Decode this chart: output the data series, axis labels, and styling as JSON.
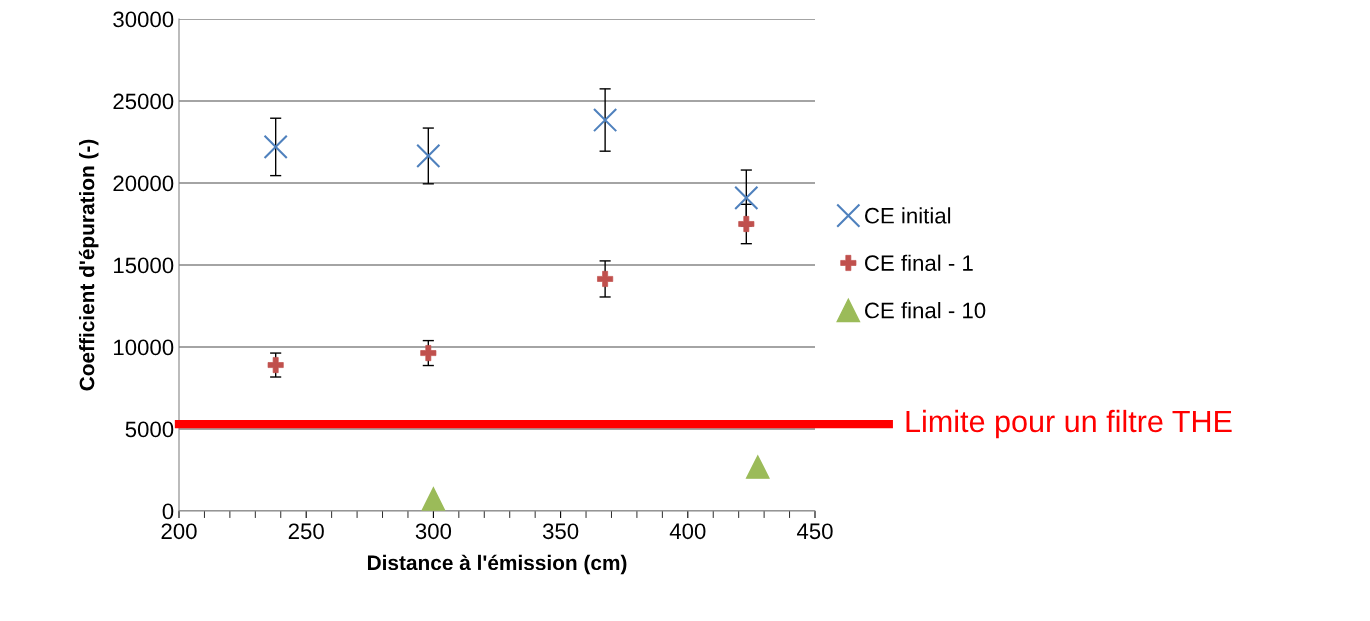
{
  "chart_data": {
    "type": "scatter",
    "xlabel": "Distance à l'émission (cm)",
    "ylabel": "Coefficient d'épuration (-)",
    "series": [
      {
        "name": "CE initial",
        "color": "#4f81bd",
        "marker": "cross",
        "x": [
          238,
          298,
          367.5,
          423
        ],
        "values": [
          22200,
          21650,
          23840,
          19090
        ],
        "errors": [
          1750,
          1700,
          1900,
          1700
        ]
      },
      {
        "name": "CE final - 1",
        "color": "#c0504d",
        "marker": "cross",
        "x": [
          238,
          298,
          367.5,
          423
        ],
        "values": [
          8900,
          9630,
          14150,
          17500
        ],
        "errors": [
          730,
          760,
          1100,
          1200
        ]
      },
      {
        "name": "CE final - 10",
        "color": "#9bbb59",
        "marker": "triangle",
        "x": [
          300,
          427.5
        ],
        "values": [
          730,
          2680
        ]
      }
    ],
    "xlim": [
      200,
      450
    ],
    "xticks": [
      200,
      250,
      300,
      350,
      400,
      450
    ],
    "ylim": [
      0,
      30000
    ],
    "yticks": [
      0,
      5000,
      10000,
      15000,
      20000,
      25000,
      30000
    ],
    "ref_lines": [
      {
        "axis": "y",
        "value": 5300,
        "label": "Limite pour un filtre THE",
        "color": "#ff0000"
      }
    ],
    "grid": "y",
    "legend": "right"
  }
}
